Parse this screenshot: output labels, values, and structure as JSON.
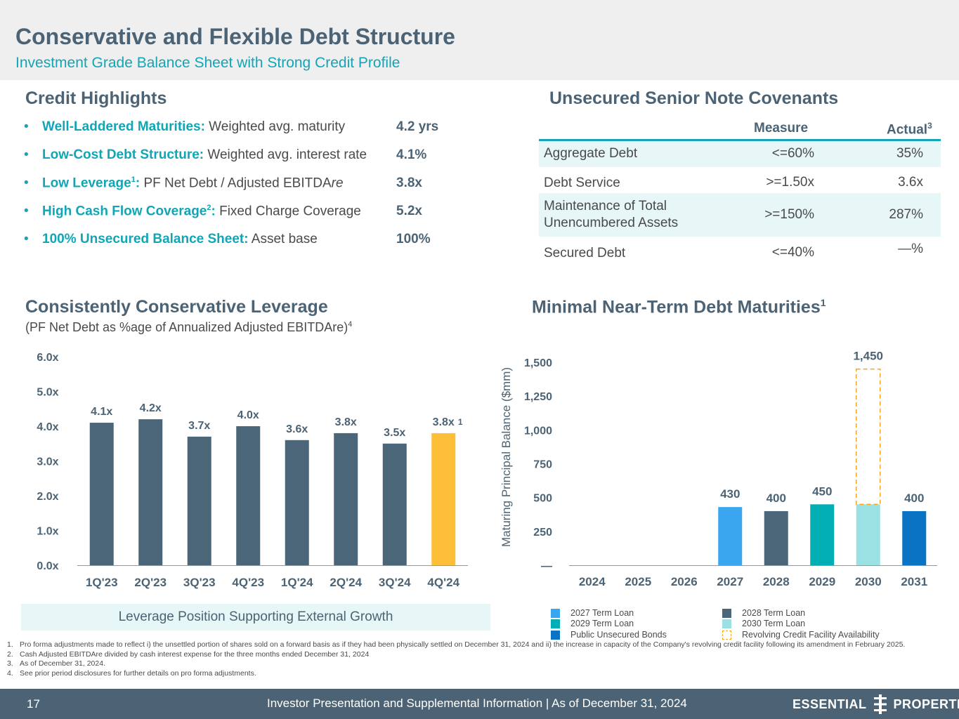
{
  "header": {
    "title": "Conservative and Flexible Debt Structure",
    "subtitle": "Investment Grade Balance Sheet with Strong Credit Profile"
  },
  "credit_highlights": {
    "title": "Credit Highlights",
    "bullet": "•",
    "items": [
      {
        "label_bold": "Well-Laddered Maturities:",
        "sup": "",
        "label_rest": "Weighted avg. maturity",
        "value": "4.2 yrs"
      },
      {
        "label_bold": "Low-Cost Debt Structure:",
        "sup": "",
        "label_rest": "Weighted avg. interest rate",
        "value": "4.1%"
      },
      {
        "label_bold": "Low Leverage",
        "sup": "1",
        "label_bold_tail": ":",
        "label_rest": "PF Net Debt / Adjusted EBITDA",
        "label_italic": "re",
        "value": "3.8x"
      },
      {
        "label_bold": "High Cash Flow Coverage",
        "sup": "2",
        "label_bold_tail": ":",
        "label_rest": "Fixed Charge Coverage",
        "value": "5.2x"
      },
      {
        "label_bold": "100% Unsecured Balance Sheet:",
        "sup": "",
        "label_rest": "Asset base",
        "value": "100%"
      }
    ]
  },
  "covenants": {
    "title": "Unsecured Senior Note Covenants",
    "col_measure": "Measure",
    "col_actual": "Actual",
    "col_actual_sup": "3",
    "rows": [
      {
        "name": "Aggregate Debt",
        "measure": "<=60%",
        "actual": "35%"
      },
      {
        "name": "Debt Service",
        "measure": ">=1.50x",
        "actual": "3.6x"
      },
      {
        "name": "Maintenance of Total",
        "name2": "Unencumbered Assets",
        "measure": ">=150%",
        "actual": "287%"
      },
      {
        "name": "Secured Debt",
        "measure": "<=40%",
        "actual": "—%"
      }
    ]
  },
  "leverage": {
    "title": "Consistently Conservative Leverage",
    "subtitle": "(PF Net Debt as %age of Annualized Adjusted EBITDAre)",
    "subtitle_sup": "4",
    "callout": "Leverage Position Supporting External Growth"
  },
  "maturities": {
    "title": "Minimal Near-Term Debt Maturities",
    "title_sup": "1"
  },
  "chart_data": [
    {
      "type": "bar",
      "title": "Consistently Conservative Leverage",
      "categories": [
        "1Q'23",
        "2Q'23",
        "3Q'23",
        "4Q'23",
        "1Q'24",
        "2Q'24",
        "3Q'24",
        "4Q'24"
      ],
      "values": [
        4.1,
        4.2,
        3.7,
        4.0,
        3.6,
        3.8,
        3.5,
        3.8
      ],
      "value_labels": [
        "4.1x",
        "4.2x",
        "3.7x",
        "4.0x",
        "3.6x",
        "3.8x",
        "3.5x",
        "3.8x"
      ],
      "highlight_index": 7,
      "highlight_note": "1",
      "yticks": [
        "0.0x",
        "1.0x",
        "2.0x",
        "3.0x",
        "4.0x",
        "5.0x",
        "6.0x"
      ],
      "ylim": [
        0,
        6
      ],
      "colors": {
        "bar": "#4b6679",
        "highlight": "#fdbf38"
      }
    },
    {
      "type": "bar",
      "title": "Minimal Near-Term Debt Maturities",
      "ylabel": "Maturing Principal Balance ($mm)",
      "categories": [
        "2024",
        "2025",
        "2026",
        "2027",
        "2028",
        "2029",
        "2030",
        "2031"
      ],
      "series": [
        {
          "name": "2027 Term Loan",
          "values": [
            0,
            0,
            0,
            430,
            0,
            0,
            0,
            0
          ],
          "color": "#3aa6f0"
        },
        {
          "name": "2028 Term Loan",
          "values": [
            0,
            0,
            0,
            0,
            400,
            0,
            0,
            0
          ],
          "color": "#4b6679"
        },
        {
          "name": "2029 Term Loan",
          "values": [
            0,
            0,
            0,
            0,
            0,
            450,
            0,
            0
          ],
          "color": "#00aeb3"
        },
        {
          "name": "2030 Term Loan",
          "values": [
            0,
            0,
            0,
            0,
            0,
            0,
            450,
            0
          ],
          "color": "#9be0e3"
        },
        {
          "name": "Public Unsecured Bonds",
          "values": [
            0,
            0,
            0,
            0,
            0,
            0,
            0,
            400
          ],
          "color": "#0a73c4"
        },
        {
          "name": "Revolving Credit Facility Availability",
          "values": [
            0,
            0,
            0,
            0,
            0,
            0,
            1000,
            0
          ],
          "color": "#f5a623",
          "style": "dashed"
        }
      ],
      "value_labels": [
        {
          "category": "2027",
          "label": "430"
        },
        {
          "category": "2028",
          "label": "400"
        },
        {
          "category": "2029",
          "label": "450"
        },
        {
          "category": "2030",
          "label": "1,450"
        },
        {
          "category": "2031",
          "label": "400"
        }
      ],
      "yticks": [
        "—",
        "250",
        "500",
        "750",
        "1,000",
        "1,250",
        "1,500"
      ],
      "ylim": [
        0,
        1500
      ]
    }
  ],
  "legend": [
    {
      "label": "2027 Term Loan",
      "color": "#3aa6f0",
      "dashed": false
    },
    {
      "label": "2028 Term Loan",
      "color": "#4b6679",
      "dashed": false
    },
    {
      "label": "2029 Term Loan",
      "color": "#00aeb3",
      "dashed": false
    },
    {
      "label": "2030 Term Loan",
      "color": "#9be0e3",
      "dashed": false
    },
    {
      "label": "Public Unsecured Bonds",
      "color": "#0a73c4",
      "dashed": false
    },
    {
      "label": "Revolving Credit Facility Availability",
      "color": "#f5a623",
      "dashed": true
    }
  ],
  "footnotes": [
    {
      "num": "1.",
      "text": "Pro forma adjustments made to reflect i) the unsettled portion of shares sold on a forward basis as if they had been physically settled on December 31, 2024 and ii) the increase in capacity of the Company's revolving credit facility following its amendment in February 2025."
    },
    {
      "num": "2.",
      "text": "Cash Adjusted EBITDAre divided by cash interest expense for the three months ended December 31, 2024"
    },
    {
      "num": "3.",
      "text": "As of December 31, 2024."
    },
    {
      "num": "4.",
      "text": "See prior period disclosures for further details on pro forma adjustments."
    }
  ],
  "footer": {
    "page_number": "17",
    "text": "Investor Presentation and Supplemental Information |  As of December 31, 2024",
    "logo_left": "ESSENTIAL",
    "logo_right": "PROPERTIES"
  }
}
